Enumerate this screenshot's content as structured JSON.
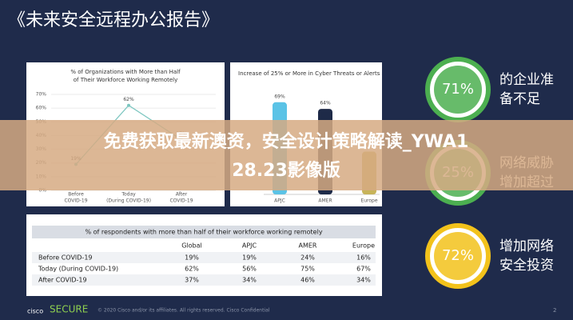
{
  "header": {
    "title": "《未来安全远程办公报告》"
  },
  "chart_data": [
    {
      "type": "line",
      "title": [
        "% of Organizations with More than Half",
        "of Their Workforce Working Remotely"
      ],
      "categories": [
        [
          "Before",
          "COVID-19"
        ],
        [
          "Today",
          "(During COVID-19)"
        ],
        [
          "After",
          "COVID-19"
        ]
      ],
      "values": [
        19,
        62,
        37
      ],
      "value_labels": [
        "19%",
        "62%",
        "37%"
      ],
      "color": "#7cc6c0",
      "ylim": [
        0,
        70
      ],
      "yticks": [
        {
          "value": 0,
          "label": "0%"
        },
        {
          "value": 10,
          "label": "10%"
        },
        {
          "value": 20,
          "label": "20%"
        },
        {
          "value": 30,
          "label": "30%"
        },
        {
          "value": 40,
          "label": "40%"
        },
        {
          "value": 50,
          "label": "50%"
        },
        {
          "value": 60,
          "label": "60%"
        },
        {
          "value": 70,
          "label": "70%"
        }
      ],
      "grid": true
    },
    {
      "type": "bar",
      "title": [
        "Increase of 25% or More in Cyber Threats or Alerts"
      ],
      "categories": [
        "APJC",
        "AMER",
        "Europe"
      ],
      "values": [
        69,
        64,
        32
      ],
      "value_labels": [
        "69%",
        "64%",
        null
      ],
      "colors": [
        "#5bc3e6",
        "#1e2a48",
        "#c7b45a"
      ]
    }
  ],
  "table": {
    "title": "% of respondents with more than half of their workforce working remotely",
    "columns": [
      "Global",
      "APJC",
      "AMER",
      "Europe"
    ],
    "rows": [
      [
        "Before COVID-19",
        "19%",
        "19%",
        "24%",
        "16%"
      ],
      [
        "Today (During COVID-19)",
        "62%",
        "56%",
        "75%",
        "67%"
      ],
      [
        "After COVID-19",
        "37%",
        "34%",
        "46%",
        "34%"
      ]
    ]
  },
  "stats": [
    {
      "value": "71%",
      "lines": [
        "的企业准",
        "备不足"
      ],
      "color": "#4caf50"
    },
    {
      "value": "25%",
      "lines": [
        "网络威胁",
        "增加超过"
      ],
      "color": "#4caf50"
    },
    {
      "value": "72%",
      "lines": [
        "增加网络",
        "安全投资"
      ],
      "color": "#f2c21b"
    }
  ],
  "banner": {
    "lines": [
      "免费获取最新澳资，安全设计策略解读_YWA1",
      "28.23影像版"
    ]
  },
  "footer": {
    "brand": "cisco",
    "product": "SECURE",
    "copyright": "© 2020 Cisco and/or its affiliates. All rights reserved. Cisco Confidential",
    "page": "2"
  }
}
